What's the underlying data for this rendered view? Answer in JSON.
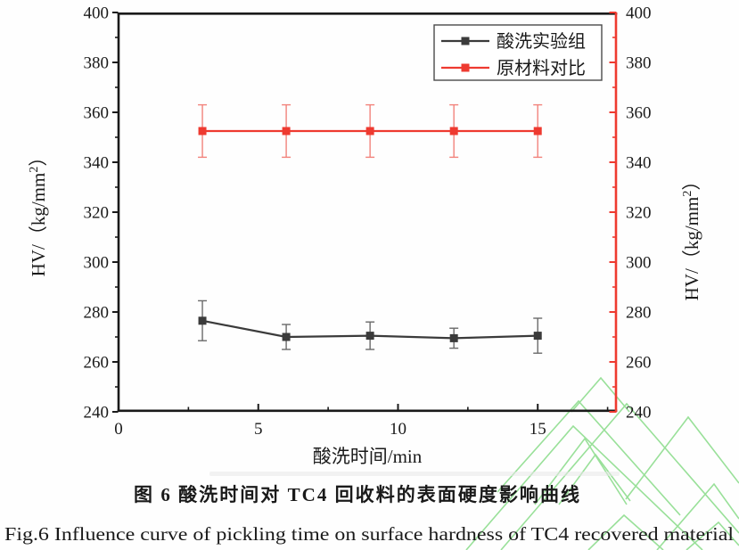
{
  "figure": {
    "captions": {
      "zh": "图 6 酸洗时间对 TC4 回收料的表面硬度影响曲线",
      "en": "Fig.6 Influence curve of pickling time on surface hardness of TC4 recovered material"
    }
  },
  "chart_data": {
    "type": "line",
    "title": "",
    "xlabel": "酸洗时间/min",
    "ylabel_left": {
      "prefix": "HV/（kg/mm",
      "sup": "2",
      "suffix": "）"
    },
    "ylabel_right": {
      "prefix": "HV/（kg/mm",
      "sup": "2",
      "suffix": "）"
    },
    "xlim": [
      0,
      17.8
    ],
    "ylim": [
      240,
      400
    ],
    "x_major_ticks": [
      0,
      5,
      10,
      15
    ],
    "x_minor_step": 2.5,
    "y_major_step": 20,
    "y_minor_step": 10,
    "grid": false,
    "legend_position": "top-right-inside",
    "x": [
      3,
      6,
      9,
      12,
      15
    ],
    "series": [
      {
        "name": "酸洗实验组",
        "color": "#3b3b3b",
        "error_color": "#6a6a6a",
        "marker": "square",
        "values": [
          276.5,
          270,
          270.5,
          269.5,
          270.5
        ],
        "errors": [
          8,
          5,
          5.5,
          4,
          7
        ]
      },
      {
        "name": "原材料对比",
        "color": "#ee3a30",
        "error_color": "#f2837c",
        "marker": "square",
        "values": [
          352.5,
          352.5,
          352.5,
          352.5,
          352.5
        ],
        "errors": [
          10.5,
          10.5,
          10.5,
          10.5,
          10.5
        ]
      }
    ],
    "left_axis_color": "#1a1a1a",
    "right_axis_color": "#ee3a30",
    "right_axis_tick_label_color": "#ee3a30",
    "watermark_color": "#99e099"
  }
}
